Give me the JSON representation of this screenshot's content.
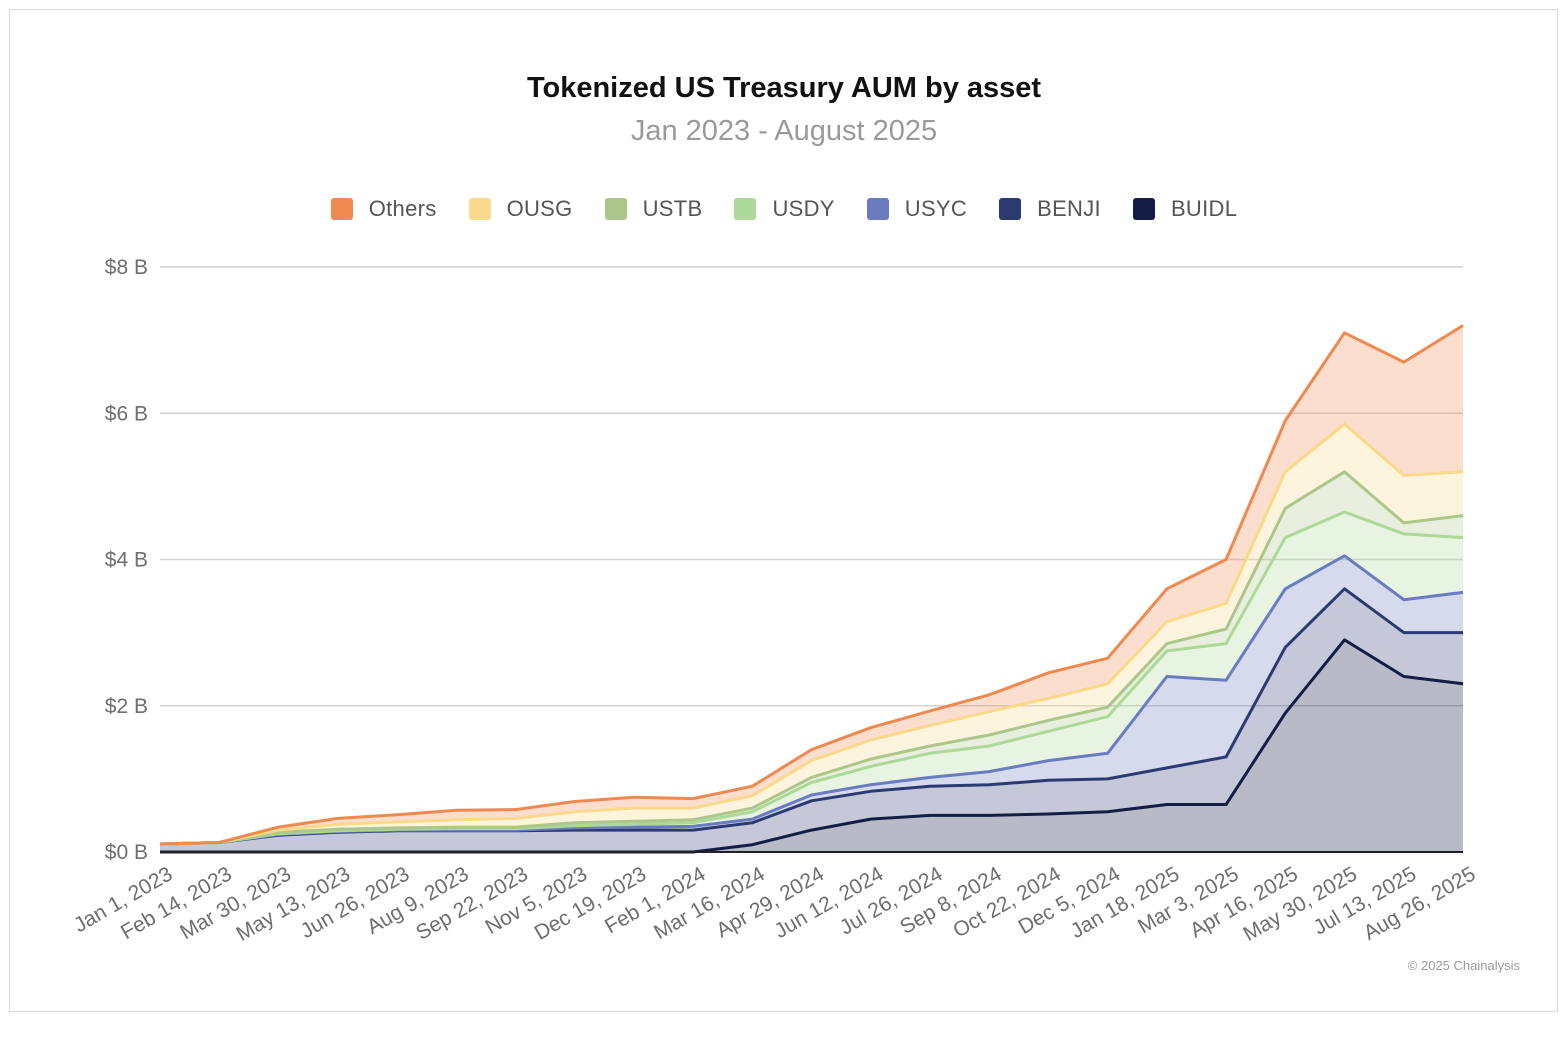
{
  "chart_data": {
    "type": "area",
    "stacked": true,
    "title": "Tokenized US Treasury AUM by asset",
    "subtitle": "Jan 2023 - August 2025",
    "y_ticks": [
      "$0 B",
      "$2 B",
      "$4 B",
      "$6 B",
      "$8 B"
    ],
    "ylim": [
      0,
      8
    ],
    "y_unit": "$ B",
    "x_ticks": [
      "Jan 1, 2023",
      "Feb 14, 2023",
      "Mar 30, 2023",
      "May 13, 2023",
      "Jun 26, 2023",
      "Aug 9, 2023",
      "Sep 22, 2023",
      "Nov 5, 2023",
      "Dec 19, 2023",
      "Feb 1, 2024",
      "Mar 16, 2024",
      "Apr 29, 2024",
      "Jun 12, 2024",
      "Jul 26, 2024",
      "Sep 8, 2024",
      "Oct 22, 2024",
      "Dec 5, 2024",
      "Jan 18, 2025",
      "Mar 3, 2025",
      "Apr 16, 2025",
      "May 30, 2025",
      "Jul 13, 2025",
      "Aug 26, 2025"
    ],
    "x_dates": [
      "2023-01-01",
      "2023-02-14",
      "2023-03-30",
      "2023-05-13",
      "2023-06-26",
      "2023-08-09",
      "2023-09-22",
      "2023-11-05",
      "2023-12-19",
      "2024-02-01",
      "2024-03-16",
      "2024-04-29",
      "2024-06-12",
      "2024-07-26",
      "2024-09-08",
      "2024-10-22",
      "2024-12-05",
      "2025-01-18",
      "2025-03-03",
      "2025-04-16",
      "2025-05-30",
      "2025-07-13",
      "2025-08-26"
    ],
    "grid": true,
    "legend_position": "top",
    "series_order_bottom_to_top": [
      "BUIDL",
      "BENJI",
      "USYC",
      "USDY",
      "USTB",
      "OUSG",
      "Others"
    ],
    "legend": [
      {
        "name": "Others",
        "color": "#f0894f"
      },
      {
        "name": "OUSG",
        "color": "#f9d98a"
      },
      {
        "name": "USTB",
        "color": "#adc68a"
      },
      {
        "name": "USDY",
        "color": "#acd898"
      },
      {
        "name": "USYC",
        "color": "#6a7bc0"
      },
      {
        "name": "BENJI",
        "color": "#2c3a72"
      },
      {
        "name": "BUIDL",
        "color": "#141e44"
      }
    ],
    "stacked_cumulative": [
      {
        "date": "2023-01-01",
        "BUIDL": 0.0,
        "BENJI": 0.11,
        "USYC": 0.11,
        "USDY": 0.11,
        "USTB": 0.11,
        "OUSG": 0.11,
        "Others": 0.11
      },
      {
        "date": "2023-02-14",
        "BUIDL": 0.0,
        "BENJI": 0.13,
        "USYC": 0.13,
        "USDY": 0.13,
        "USTB": 0.13,
        "OUSG": 0.13,
        "Others": 0.13
      },
      {
        "date": "2023-03-30",
        "BUIDL": 0.0,
        "BENJI": 0.23,
        "USYC": 0.24,
        "USDY": 0.25,
        "USTB": 0.27,
        "OUSG": 0.3,
        "Others": 0.34
      },
      {
        "date": "2023-05-13",
        "BUIDL": 0.0,
        "BENJI": 0.27,
        "USYC": 0.28,
        "USDY": 0.29,
        "USTB": 0.31,
        "OUSG": 0.38,
        "Others": 0.46
      },
      {
        "date": "2023-06-26",
        "BUIDL": 0.0,
        "BENJI": 0.29,
        "USYC": 0.3,
        "USDY": 0.31,
        "USTB": 0.33,
        "OUSG": 0.41,
        "Others": 0.51
      },
      {
        "date": "2023-08-09",
        "BUIDL": 0.0,
        "BENJI": 0.29,
        "USYC": 0.3,
        "USDY": 0.32,
        "USTB": 0.34,
        "OUSG": 0.44,
        "Others": 0.57
      },
      {
        "date": "2023-09-22",
        "BUIDL": 0.0,
        "BENJI": 0.29,
        "USYC": 0.3,
        "USDY": 0.32,
        "USTB": 0.34,
        "OUSG": 0.46,
        "Others": 0.58
      },
      {
        "date": "2023-11-05",
        "BUIDL": 0.0,
        "BENJI": 0.3,
        "USYC": 0.33,
        "USDY": 0.36,
        "USTB": 0.4,
        "OUSG": 0.55,
        "Others": 0.69
      },
      {
        "date": "2023-12-19",
        "BUIDL": 0.0,
        "BENJI": 0.3,
        "USYC": 0.34,
        "USDY": 0.38,
        "USTB": 0.42,
        "OUSG": 0.6,
        "Others": 0.75
      },
      {
        "date": "2024-02-01",
        "BUIDL": 0.0,
        "BENJI": 0.3,
        "USYC": 0.35,
        "USDY": 0.4,
        "USTB": 0.44,
        "OUSG": 0.6,
        "Others": 0.73
      },
      {
        "date": "2024-03-16",
        "BUIDL": 0.1,
        "BENJI": 0.4,
        "USYC": 0.45,
        "USDY": 0.55,
        "USTB": 0.6,
        "OUSG": 0.77,
        "Others": 0.9
      },
      {
        "date": "2024-04-29",
        "BUIDL": 0.3,
        "BENJI": 0.7,
        "USYC": 0.78,
        "USDY": 0.95,
        "USTB": 1.02,
        "OUSG": 1.25,
        "Others": 1.4
      },
      {
        "date": "2024-06-12",
        "BUIDL": 0.45,
        "BENJI": 0.83,
        "USYC": 0.92,
        "USDY": 1.17,
        "USTB": 1.27,
        "OUSG": 1.53,
        "Others": 1.7
      },
      {
        "date": "2024-07-26",
        "BUIDL": 0.5,
        "BENJI": 0.9,
        "USYC": 1.02,
        "USDY": 1.35,
        "USTB": 1.45,
        "OUSG": 1.73,
        "Others": 1.93
      },
      {
        "date": "2024-09-08",
        "BUIDL": 0.5,
        "BENJI": 0.92,
        "USYC": 1.1,
        "USDY": 1.45,
        "USTB": 1.6,
        "OUSG": 1.92,
        "Others": 2.15
      },
      {
        "date": "2024-10-22",
        "BUIDL": 0.52,
        "BENJI": 0.98,
        "USYC": 1.25,
        "USDY": 1.65,
        "USTB": 1.8,
        "OUSG": 2.1,
        "Others": 2.45
      },
      {
        "date": "2024-12-05",
        "BUIDL": 0.55,
        "BENJI": 1.0,
        "USYC": 1.35,
        "USDY": 1.85,
        "USTB": 1.98,
        "OUSG": 2.3,
        "Others": 2.65
      },
      {
        "date": "2025-01-18",
        "BUIDL": 0.65,
        "BENJI": 1.15,
        "USYC": 2.4,
        "USDY": 2.75,
        "USTB": 2.85,
        "OUSG": 3.15,
        "Others": 3.6
      },
      {
        "date": "2025-03-03",
        "BUIDL": 0.65,
        "BENJI": 1.3,
        "USYC": 2.35,
        "USDY": 2.85,
        "USTB": 3.05,
        "OUSG": 3.4,
        "Others": 4.0
      },
      {
        "date": "2025-04-16",
        "BUIDL": 1.9,
        "BENJI": 2.8,
        "USYC": 3.6,
        "USDY": 4.3,
        "USTB": 4.7,
        "OUSG": 5.2,
        "Others": 5.9
      },
      {
        "date": "2025-05-30",
        "BUIDL": 2.9,
        "BENJI": 3.6,
        "USYC": 4.05,
        "USDY": 4.65,
        "USTB": 5.2,
        "OUSG": 5.85,
        "Others": 7.1
      },
      {
        "date": "2025-07-13",
        "BUIDL": 2.4,
        "BENJI": 3.0,
        "USYC": 3.45,
        "USDY": 4.35,
        "USTB": 4.5,
        "OUSG": 5.15,
        "Others": 6.7
      },
      {
        "date": "2025-08-26",
        "BUIDL": 2.3,
        "BENJI": 3.0,
        "USYC": 3.55,
        "USDY": 4.3,
        "USTB": 4.6,
        "OUSG": 5.2,
        "Others": 7.2
      }
    ]
  },
  "credit": "© 2025 Chainalysis"
}
